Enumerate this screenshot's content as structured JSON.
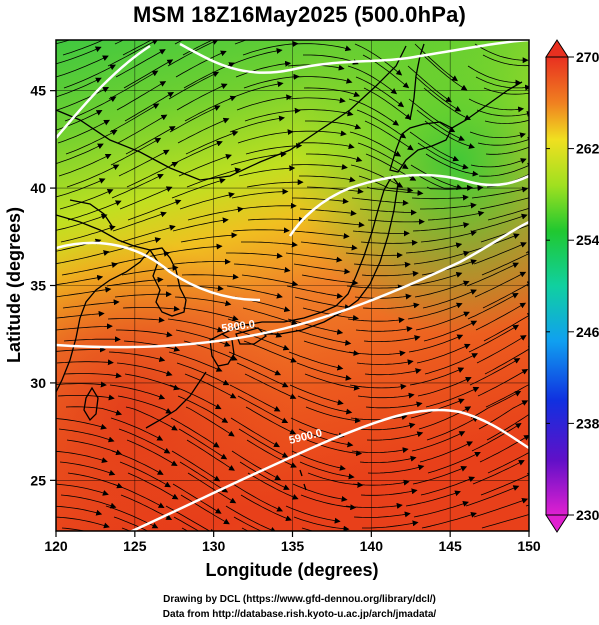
{
  "title": "MSM 18Z16May2025 (500.0hPa)",
  "x_axis": {
    "label": "Longitude (degrees)",
    "ticks": [
      "120",
      "125",
      "130",
      "135",
      "140",
      "145",
      "150"
    ],
    "range": [
      120,
      150
    ]
  },
  "y_axis": {
    "label": "Latitude  (degrees)",
    "ticks": [
      "25",
      "30",
      "35",
      "40",
      "45"
    ],
    "range": [
      22.4,
      47.6
    ]
  },
  "colorbar": {
    "min": 230,
    "max": 270,
    "ticks": [
      "230",
      "238",
      "246",
      "254",
      "262",
      "270"
    ]
  },
  "contours": [
    {
      "label": "5800.0"
    },
    {
      "label": "5900.0"
    }
  ],
  "credits": {
    "line1": "Drawing by DCL (https://www.gfd-dennou.org/library/dcl/)",
    "line2": "Data from http://database.rish.kyoto-u.ac.jp/arch/jmadata/"
  },
  "colors": {
    "warm": "#e8421a",
    "mid": "#f5c020",
    "cool": "#3fc83a",
    "contour": "#ffffff",
    "coast": "#000000"
  }
}
